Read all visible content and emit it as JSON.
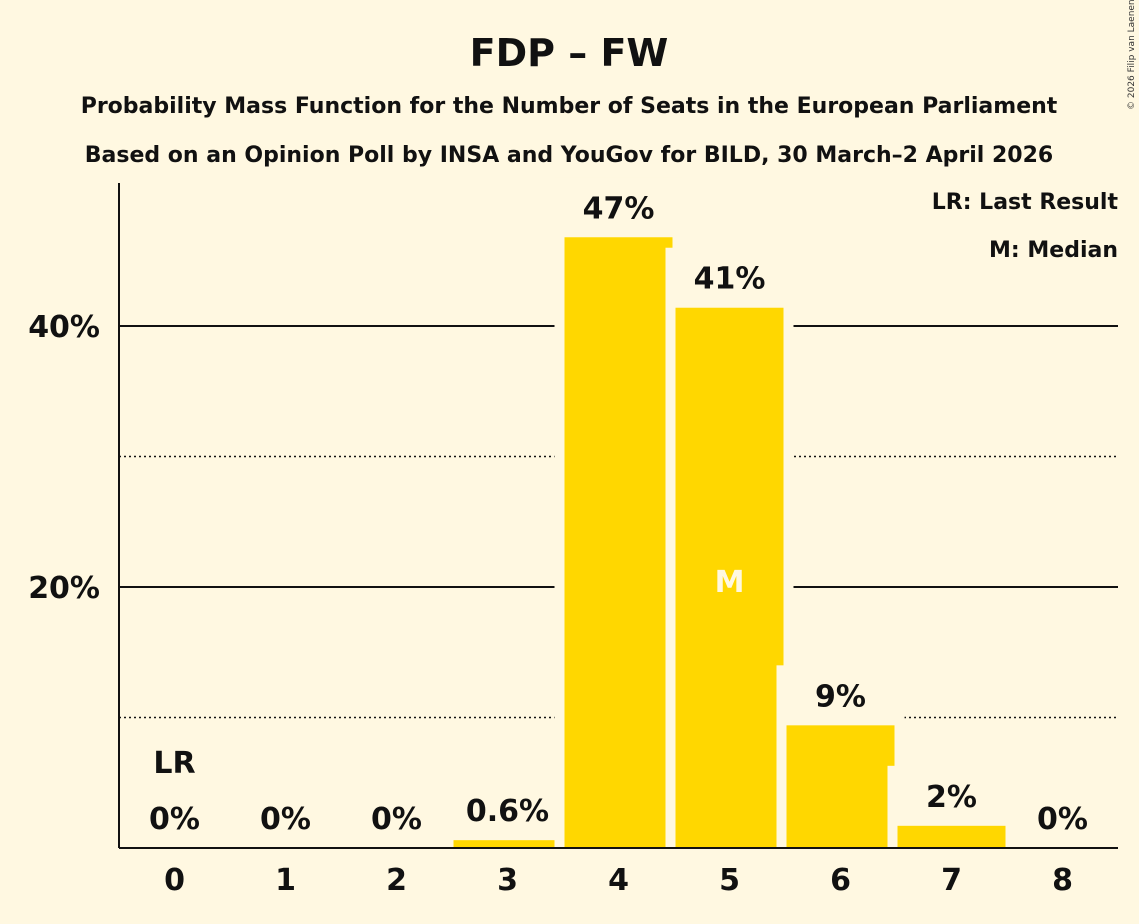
{
  "chart_data": {
    "type": "bar",
    "title": "FDP – FW",
    "subtitle": "Probability Mass Function for the Number of Seats in the European Parliament",
    "subtitle2": "Based on an Opinion Poll by INSA and YouGov for BILD, 30 March–2 April 2026",
    "categories": [
      "0",
      "1",
      "2",
      "3",
      "4",
      "5",
      "6",
      "7",
      "8"
    ],
    "values": [
      0,
      0,
      0,
      0.6,
      46.8,
      41.4,
      9.4,
      1.7,
      0
    ],
    "data_labels": [
      "0%",
      "0%",
      "0%",
      "0.6%",
      "47%",
      "41%",
      "9%",
      "2%",
      "0%"
    ],
    "ylim": [
      0,
      50
    ],
    "yticks": [
      {
        "value": 20,
        "label": "20%"
      },
      {
        "value": 40,
        "label": "40%"
      }
    ],
    "minor_gridlines": [
      10,
      30
    ],
    "last_result_index": 0,
    "last_result_label": "LR",
    "median_index": 5,
    "median_label": "M",
    "legend": [
      "LR: Last Result",
      "M: Median"
    ],
    "copyright": "© 2026 Filip van Laenen",
    "bar_color": "#FFD700"
  }
}
